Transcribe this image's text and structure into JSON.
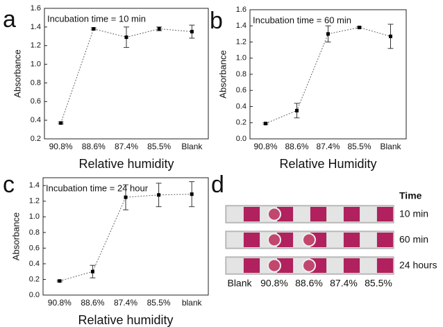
{
  "chart_data": [
    {
      "type": "line",
      "panel_label": "a",
      "title": "Incubation time = 10 min",
      "x_label": "Relative humidity",
      "y_label": "Absorbance",
      "categories": [
        "90.8%",
        "88.6%",
        "87.4%",
        "85.5%",
        "Blank"
      ],
      "values": [
        0.37,
        1.38,
        1.29,
        1.38,
        1.35
      ],
      "errors": [
        0.01,
        0.01,
        0.11,
        0.02,
        0.07
      ],
      "color": "#000000",
      "ylim": [
        0.2,
        1.6
      ],
      "yticks": [
        0.2,
        0.4,
        0.6,
        0.8,
        {
          "value": 1,
          "label": "1.0"
        },
        1.2,
        1.4,
        1.6
      ]
    },
    {
      "type": "line",
      "panel_label": "b",
      "title": "Incubation time = 60 min",
      "x_label": "Relative Humidity",
      "y_label": "Absorbance",
      "categories": [
        "90.8%",
        "88.6%",
        "87.4%",
        "85.5%",
        "Blank"
      ],
      "values": [
        0.19,
        0.35,
        1.3,
        1.38,
        1.27
      ],
      "errors": [
        0.01,
        0.09,
        0.1,
        0.01,
        0.15
      ],
      "color": "#000000",
      "ylim": [
        0,
        1.6
      ],
      "yticks": [
        {
          "value": 0,
          "label": "0.0"
        },
        0.2,
        0.4,
        0.6,
        0.8,
        {
          "value": 1,
          "label": "1.0"
        },
        1.2,
        1.4,
        1.6
      ]
    },
    {
      "type": "line",
      "panel_label": "c",
      "title": "Incubation time = 24 hour",
      "x_label": "Relative humidity",
      "y_label": "Absorbance",
      "categories": [
        "90.8%",
        "88.6%",
        "87.4%",
        "85.5%",
        "blank"
      ],
      "values": [
        0.18,
        0.3,
        1.25,
        1.28,
        1.29
      ],
      "errors": [
        0.01,
        0.08,
        0.16,
        0.15,
        0.16
      ],
      "color": "#000000",
      "ylim": [
        0,
        1.5
      ],
      "yticks": [
        {
          "value": 0,
          "label": "0.0"
        },
        0.2,
        0.4,
        0.6,
        0.8,
        {
          "value": 1,
          "label": "1.0"
        },
        1.2,
        1.4
      ]
    }
  ],
  "panel_d": {
    "panel_label": "d",
    "header": "Time",
    "rows": [
      "10 min",
      "60 min",
      "24 hours"
    ],
    "columns": [
      "Blank",
      "90.8%",
      "88.6%",
      "87.4%",
      "85.5%"
    ]
  }
}
